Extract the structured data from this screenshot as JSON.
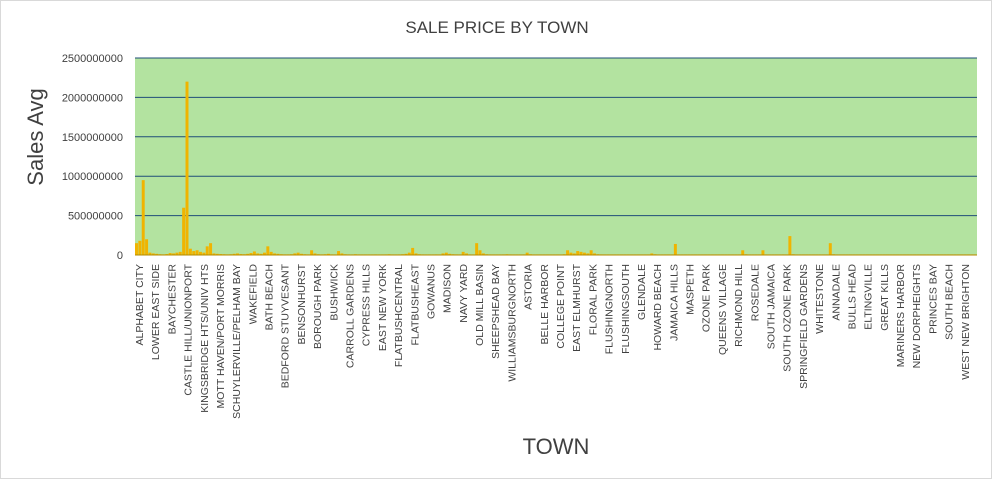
{
  "chart_data": {
    "type": "bar",
    "title": "SALE PRICE BY TOWN",
    "xlabel": "TOWN",
    "ylabel": "Sales Avg",
    "ylim": [
      0,
      2500000000
    ],
    "yticks": [
      "0",
      "500000000",
      "1000000000",
      "1500000000",
      "2000000000",
      "2500000000"
    ],
    "grid": true,
    "legend": "none",
    "colors": {
      "plot_bg": "#b3e3a0",
      "bar": "#f0b400",
      "gridline": "#1f4e79",
      "text": "#404040"
    },
    "labeled_categories": [
      "ALPHABET CITY",
      "LOWER EAST SIDE",
      "BAYCHESTER",
      "CASTLE HILL/UNIONPORT",
      "KINGSBRIDGE HTS/UNIV HTS",
      "MOTT HAVEN/PORT MORRIS",
      "SCHUYLERVILLE/PELHAM BAY",
      "WAKEFIELD",
      "BATH BEACH",
      "BEDFORD STUYVESANT",
      "BENSONHURST",
      "BOROUGH PARK",
      "BUSHWICK",
      "CARROLL GARDENS",
      "CYPRESS HILLS",
      "EAST NEW YORK",
      "FLATBUSHCENTRAL",
      "FLATBUSHEAST",
      "GOWANUS",
      "MADISON",
      "NAVY YARD",
      "OLD MILL BASIN",
      "SHEEPSHEAD BAY",
      "WILLIAMSBURGNORTH",
      "ASTORIA",
      "BELLE HARBOR",
      "COLLEGE POINT",
      "EAST ELMHURST",
      "FLORAL PARK",
      "FLUSHINGNORTH",
      "FLUSHINGSOUTH",
      "GLENDALE",
      "HOWARD BEACH",
      "JAMAICA HILLS",
      "MASPETH",
      "OZONE PARK",
      "QUEENS VILLAGE",
      "RICHMOND HILL",
      "ROSEDALE",
      "SOUTH JAMAICA",
      "SOUTH OZONE PARK",
      "SPRINGFIELD GARDENS",
      "WHITESTONE",
      "ANNADALE",
      "BULLS HEAD",
      "ELTINGVILLE",
      "GREAT KILLS",
      "MARINERS HARBOR",
      "NEW DORPHEIGHTS",
      "PRINCES BAY",
      "SOUTH BEACH",
      "WEST NEW BRIGHTON"
    ],
    "category_count": 250,
    "values": [
      150000000,
      180000000,
      950000000,
      200000000,
      30000000,
      20000000,
      15000000,
      10000000,
      8000000,
      12000000,
      25000000,
      20000000,
      30000000,
      40000000,
      600000000,
      2200000000,
      80000000,
      50000000,
      60000000,
      40000000,
      30000000,
      110000000,
      150000000,
      20000000,
      15000000,
      12000000,
      10000000,
      8000000,
      10000000,
      15000000,
      20000000,
      12000000,
      10000000,
      15000000,
      25000000,
      45000000,
      20000000,
      15000000,
      30000000,
      110000000,
      40000000,
      20000000,
      15000000,
      10000000,
      8000000,
      8000000,
      10000000,
      20000000,
      30000000,
      15000000,
      10000000,
      8000000,
      60000000,
      20000000,
      10000000,
      8000000,
      10000000,
      15000000,
      8000000,
      6000000,
      50000000,
      20000000,
      10000000,
      8000000,
      6000000,
      10000000,
      8000000,
      6000000,
      5000000,
      6000000,
      5000000,
      8000000,
      6000000,
      5000000,
      8000000,
      10000000,
      6000000,
      5000000,
      8000000,
      10000000,
      15000000,
      30000000,
      90000000,
      20000000,
      10000000,
      8000000,
      6000000,
      5000000,
      6000000,
      8000000,
      6000000,
      20000000,
      30000000,
      15000000,
      10000000,
      8000000,
      6000000,
      40000000,
      20000000,
      8000000,
      6000000,
      150000000,
      60000000,
      20000000,
      10000000,
      8000000,
      6000000,
      5000000,
      6000000,
      8000000,
      10000000,
      8000000,
      6000000,
      5000000,
      6000000,
      8000000,
      30000000,
      10000000,
      6000000,
      5000000,
      5000000,
      6000000,
      5000000,
      4000000,
      5000000,
      6000000,
      5000000,
      10000000,
      60000000,
      30000000,
      20000000,
      50000000,
      40000000,
      30000000,
      20000000,
      60000000,
      20000000,
      10000000,
      8000000,
      6000000,
      5000000,
      6000000,
      5000000,
      5000000,
      4000000,
      5000000,
      6000000,
      5000000,
      4000000,
      5000000,
      6000000,
      5000000,
      6000000,
      20000000,
      10000000,
      5000000,
      4000000,
      5000000,
      4000000,
      5000000,
      140000000,
      8000000,
      6000000,
      5000000,
      5000000,
      4000000,
      5000000,
      6000000,
      5000000,
      4000000,
      5000000,
      6000000,
      5000000,
      4000000,
      5000000,
      5000000,
      6000000,
      5000000,
      4000000,
      5000000,
      60000000,
      10000000,
      5000000,
      4000000,
      5000000,
      6000000,
      60000000,
      8000000,
      5000000,
      4000000,
      5000000,
      6000000,
      8000000,
      5000000,
      240000000,
      10000000,
      6000000,
      5000000,
      4000000,
      5000000,
      6000000,
      5000000,
      4000000,
      5000000,
      6000000,
      5000000,
      150000000,
      10000000,
      6000000,
      5000000,
      4000000,
      5000000,
      6000000,
      5000000,
      4000000,
      5000000,
      6000000,
      5000000,
      4000000,
      5000000,
      6000000,
      5000000,
      4000000,
      5000000,
      5000000,
      4000000,
      5000000,
      6000000,
      5000000,
      4000000,
      5000000,
      6000000,
      5000000,
      4000000,
      5000000,
      5000000,
      6000000,
      5000000,
      4000000,
      5000000,
      4000000,
      5000000,
      6000000,
      5000000,
      4000000,
      5000000,
      6000000,
      5000000,
      4000000,
      5000000
    ]
  }
}
